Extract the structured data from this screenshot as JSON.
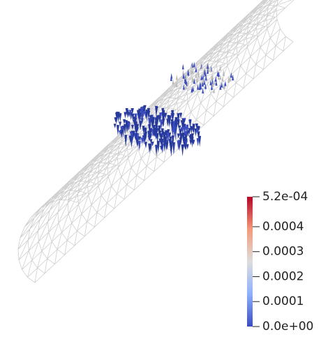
{
  "colorbar": {
    "ylim": [
      0,
      0.00052
    ],
    "yticks": [
      {
        "value": 0.00052,
        "label": "5.2e-04"
      },
      0.0004,
      0.0003,
      0.0002,
      0.0001,
      {
        "value": 0,
        "label": "0.0e+00"
      }
    ]
  }
}
